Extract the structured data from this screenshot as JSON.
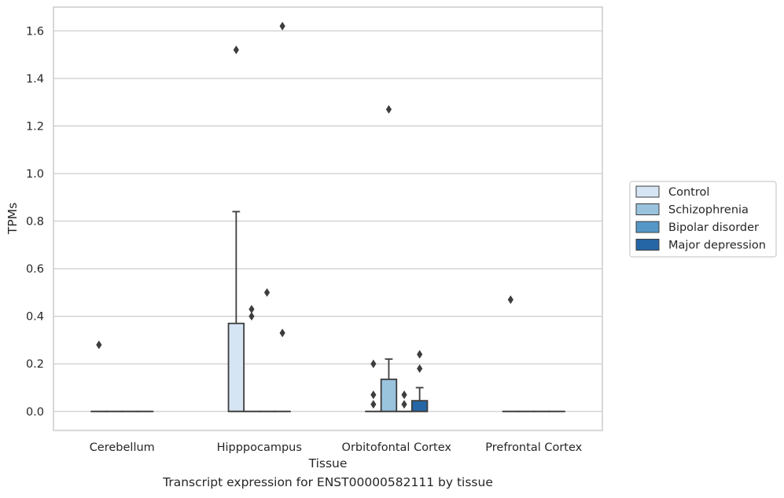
{
  "caption": "Transcript expression for ENST00000582111 by tissue",
  "chart_data": {
    "type": "box",
    "xlabel": "Tissue",
    "ylabel": "TPMs",
    "ylim": [
      -0.08,
      1.7
    ],
    "yticks": [
      0.0,
      0.2,
      0.4,
      0.6,
      0.8,
      1.0,
      1.2,
      1.4,
      1.6
    ],
    "grid": "horizontal",
    "legend_position": "right",
    "categories": [
      "Cerebellum",
      "Hipppocampus",
      "Orbitofontal Cortex",
      "Prefrontal Cortex"
    ],
    "series": [
      {
        "name": "Control",
        "color": "#d6e5f4",
        "boxes": [
          {
            "q1": 0,
            "median": 0,
            "q3": 0,
            "whisker_low": 0,
            "whisker_high": 0,
            "outliers": [
              0.28
            ]
          },
          {
            "q1": 0,
            "median": 0,
            "q3": 0.37,
            "whisker_low": 0,
            "whisker_high": 0.84,
            "outliers": [
              1.52
            ]
          },
          {
            "q1": 0,
            "median": 0,
            "q3": 0,
            "whisker_low": 0,
            "whisker_high": 0,
            "outliers": [
              0.2,
              0.07,
              0.03
            ]
          },
          {
            "q1": 0,
            "median": 0,
            "q3": 0,
            "whisker_low": 0,
            "whisker_high": 0,
            "outliers": [
              0.47
            ]
          }
        ]
      },
      {
        "name": "Schizophrenia",
        "color": "#9ac3de",
        "boxes": [
          {
            "q1": 0,
            "median": 0,
            "q3": 0,
            "whisker_low": 0,
            "whisker_high": 0,
            "outliers": []
          },
          {
            "q1": 0,
            "median": 0,
            "q3": 0,
            "whisker_low": 0,
            "whisker_high": 0,
            "outliers": [
              0.43,
              0.4
            ]
          },
          {
            "q1": 0,
            "median": 0,
            "q3": 0.135,
            "whisker_low": 0,
            "whisker_high": 0.22,
            "outliers": [
              1.27
            ]
          },
          {
            "q1": 0,
            "median": 0,
            "q3": 0,
            "whisker_low": 0,
            "whisker_high": 0,
            "outliers": []
          }
        ]
      },
      {
        "name": "Bipolar disorder",
        "color": "#5597c7",
        "boxes": [
          {
            "q1": 0,
            "median": 0,
            "q3": 0,
            "whisker_low": 0,
            "whisker_high": 0,
            "outliers": []
          },
          {
            "q1": 0,
            "median": 0,
            "q3": 0,
            "whisker_low": 0,
            "whisker_high": 0,
            "outliers": [
              0.5
            ]
          },
          {
            "q1": 0,
            "median": 0,
            "q3": 0,
            "whisker_low": 0,
            "whisker_high": 0,
            "outliers": [
              0.07,
              0.03
            ]
          },
          {
            "q1": 0,
            "median": 0,
            "q3": 0,
            "whisker_low": 0,
            "whisker_high": 0,
            "outliers": []
          }
        ]
      },
      {
        "name": "Major depression",
        "color": "#2566a6",
        "boxes": [
          {
            "q1": 0,
            "median": 0,
            "q3": 0,
            "whisker_low": 0,
            "whisker_high": 0,
            "outliers": []
          },
          {
            "q1": 0,
            "median": 0,
            "q3": 0,
            "whisker_low": 0,
            "whisker_high": 0,
            "outliers": [
              1.62,
              0.33
            ]
          },
          {
            "q1": 0,
            "median": 0,
            "q3": 0.045,
            "whisker_low": 0,
            "whisker_high": 0.1,
            "outliers": [
              0.24,
              0.18
            ]
          },
          {
            "q1": 0,
            "median": 0,
            "q3": 0,
            "whisker_low": 0,
            "whisker_high": 0,
            "outliers": []
          }
        ]
      }
    ]
  }
}
